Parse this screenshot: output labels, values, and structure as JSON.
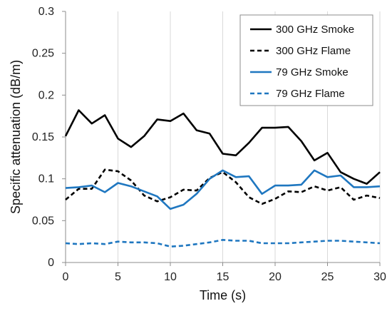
{
  "chart_data": {
    "type": "line",
    "title": "",
    "xlabel": "Time (s)",
    "ylabel": "Specific attenuation (dB/m)",
    "xlim": [
      0,
      30
    ],
    "ylim": [
      0,
      0.3
    ],
    "x_ticks": [
      0,
      5,
      10,
      15,
      20,
      25,
      30
    ],
    "y_ticks": [
      0,
      0.05,
      0.1,
      0.15,
      0.2,
      0.25,
      0.3
    ],
    "x_tick_labels": [
      "0",
      "5",
      "10",
      "15",
      "20",
      "25",
      "30"
    ],
    "y_tick_labels": [
      "0",
      "0.05",
      "0.1",
      "0.15",
      "0.2",
      "0.25",
      "0.3"
    ],
    "grid": "vertical",
    "legend_position": "top-right",
    "series": [
      {
        "name": "300 GHz Smoke",
        "color": "#000000",
        "dash": "solid",
        "x": [
          0,
          1.25,
          2.5,
          3.75,
          5,
          6.25,
          7.5,
          8.75,
          10,
          11.25,
          12.5,
          13.75,
          15,
          16.25,
          17.5,
          18.75,
          20,
          21.25,
          22.5,
          23.75,
          25,
          26.25,
          27.5,
          28.75,
          30
        ],
        "y": [
          0.151,
          0.182,
          0.166,
          0.176,
          0.148,
          0.138,
          0.151,
          0.171,
          0.169,
          0.178,
          0.158,
          0.154,
          0.13,
          0.128,
          0.143,
          0.161,
          0.161,
          0.162,
          0.145,
          0.122,
          0.131,
          0.108,
          0.1,
          0.094,
          0.108
        ]
      },
      {
        "name": "300 GHz Flame",
        "color": "#000000",
        "dash": "dashed",
        "x": [
          0,
          1.25,
          2.5,
          3.75,
          5,
          6.25,
          7.5,
          8.75,
          10,
          11.25,
          12.5,
          13.75,
          15,
          16.25,
          17.5,
          18.75,
          20,
          21.25,
          22.5,
          23.75,
          25,
          26.25,
          27.5,
          28.75,
          30
        ],
        "y": [
          0.075,
          0.088,
          0.088,
          0.111,
          0.109,
          0.098,
          0.08,
          0.073,
          0.078,
          0.087,
          0.086,
          0.101,
          0.108,
          0.096,
          0.078,
          0.07,
          0.076,
          0.085,
          0.084,
          0.091,
          0.086,
          0.09,
          0.075,
          0.08,
          0.077
        ]
      },
      {
        "name": "79 GHz Smoke",
        "color": "#1f77c0",
        "dash": "solid",
        "x": [
          0,
          1.25,
          2.5,
          3.75,
          5,
          6.25,
          7.5,
          8.75,
          10,
          11.25,
          12.5,
          13.75,
          15,
          16.25,
          17.5,
          18.75,
          20,
          21.25,
          22.5,
          23.75,
          25,
          26.25,
          27.5,
          28.75,
          30
        ],
        "y": [
          0.089,
          0.09,
          0.092,
          0.084,
          0.095,
          0.091,
          0.085,
          0.079,
          0.064,
          0.069,
          0.082,
          0.1,
          0.11,
          0.102,
          0.103,
          0.082,
          0.092,
          0.092,
          0.093,
          0.11,
          0.102,
          0.104,
          0.09,
          0.09,
          0.091
        ]
      },
      {
        "name": "79 GHz Flame",
        "color": "#1f77c0",
        "dash": "dashed",
        "x": [
          0,
          1.25,
          2.5,
          3.75,
          5,
          6.25,
          7.5,
          8.75,
          10,
          11.25,
          12.5,
          13.75,
          15,
          16.25,
          17.5,
          18.75,
          20,
          21.25,
          22.5,
          23.75,
          25,
          26.25,
          27.5,
          28.75,
          30
        ],
        "y": [
          0.023,
          0.022,
          0.023,
          0.022,
          0.025,
          0.024,
          0.024,
          0.023,
          0.019,
          0.02,
          0.022,
          0.024,
          0.027,
          0.026,
          0.026,
          0.023,
          0.023,
          0.023,
          0.024,
          0.025,
          0.026,
          0.026,
          0.025,
          0.024,
          0.023
        ]
      }
    ]
  }
}
